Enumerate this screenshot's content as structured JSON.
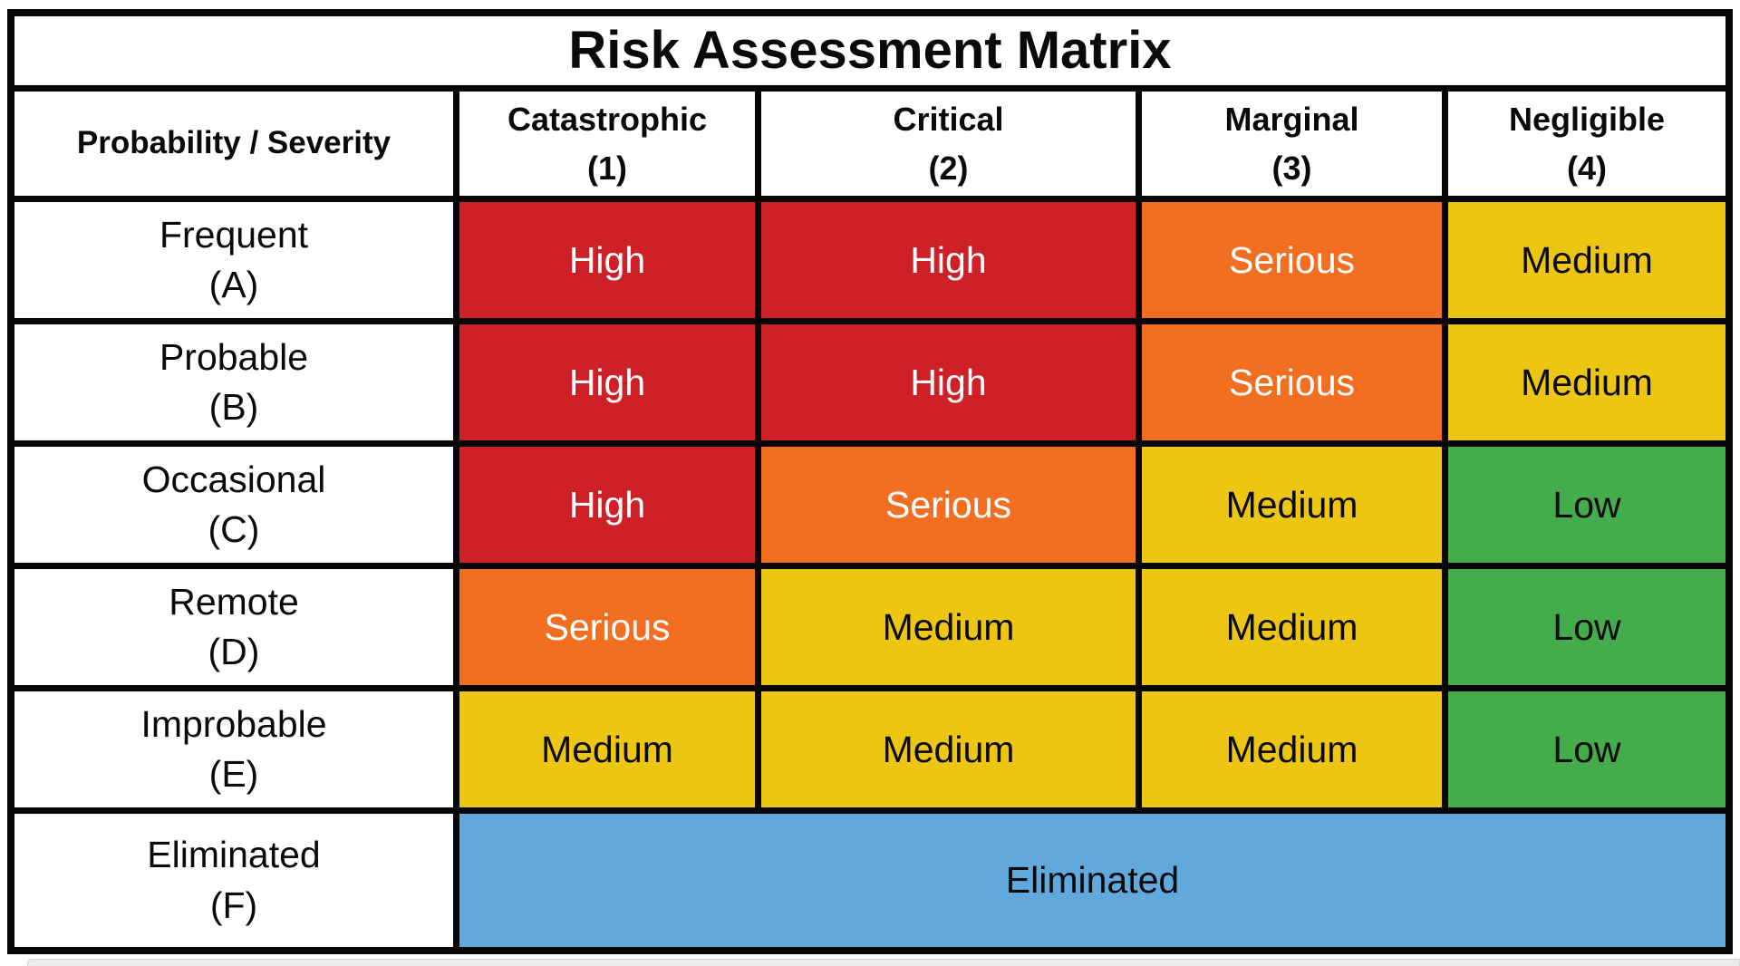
{
  "title": "Risk Assessment Matrix",
  "header": {
    "corner": "Probability / Severity",
    "columns": [
      {
        "name": "Catastrophic",
        "num": "(1)"
      },
      {
        "name": "Critical",
        "num": "(2)"
      },
      {
        "name": "Marginal",
        "num": "(3)"
      },
      {
        "name": "Negligible",
        "num": "(4)"
      }
    ]
  },
  "rows": [
    {
      "label": "Frequent",
      "code": "(A)",
      "cells": [
        {
          "text": "High",
          "level": "high"
        },
        {
          "text": "High",
          "level": "high"
        },
        {
          "text": "Serious",
          "level": "serious"
        },
        {
          "text": "Medium",
          "level": "medium"
        }
      ]
    },
    {
      "label": "Probable",
      "code": "(B)",
      "cells": [
        {
          "text": "High",
          "level": "high"
        },
        {
          "text": "High",
          "level": "high"
        },
        {
          "text": "Serious",
          "level": "serious"
        },
        {
          "text": "Medium",
          "level": "medium"
        }
      ]
    },
    {
      "label": "Occasional",
      "code": "(C)",
      "cells": [
        {
          "text": "High",
          "level": "high"
        },
        {
          "text": "Serious",
          "level": "serious"
        },
        {
          "text": "Medium",
          "level": "medium"
        },
        {
          "text": "Low",
          "level": "low"
        }
      ]
    },
    {
      "label": "Remote",
      "code": "(D)",
      "cells": [
        {
          "text": "Serious",
          "level": "serious"
        },
        {
          "text": "Medium",
          "level": "medium"
        },
        {
          "text": "Medium",
          "level": "medium"
        },
        {
          "text": "Low",
          "level": "low"
        }
      ]
    },
    {
      "label": "Improbable",
      "code": "(E)",
      "cells": [
        {
          "text": "Medium",
          "level": "medium"
        },
        {
          "text": "Medium",
          "level": "medium"
        },
        {
          "text": "Medium",
          "level": "medium"
        },
        {
          "text": "Low",
          "level": "low"
        }
      ]
    },
    {
      "label": "Eliminated",
      "code": "(F)",
      "cells": [
        {
          "text": "Eliminated",
          "level": "eliminated",
          "colspan": 4
        }
      ]
    }
  ],
  "colors": {
    "high": "#CE2127",
    "serious": "#F26E21",
    "medium": "#EDC613",
    "low": "#45AC4C",
    "eliminated": "#61A9DD",
    "grid_line": "#060606",
    "cell_background": "#FFFFFF"
  },
  "text_colors": {
    "high": "#FFFFFF",
    "serious": "#FFFFFF",
    "medium": "#0A0A0A",
    "low": "#0A0A0A",
    "eliminated": "#0A0A0A"
  },
  "chart_data": {
    "type": "heatmap",
    "title": "Risk Assessment Matrix",
    "columns": [
      "Catastrophic (1)",
      "Critical (2)",
      "Marginal (3)",
      "Negligible (4)"
    ],
    "rows": [
      "Frequent (A)",
      "Probable (B)",
      "Occasional (C)",
      "Remote (D)",
      "Improbable (E)",
      "Eliminated (F)"
    ],
    "values": [
      [
        "High",
        "High",
        "Serious",
        "Medium"
      ],
      [
        "High",
        "High",
        "Serious",
        "Medium"
      ],
      [
        "High",
        "Serious",
        "Medium",
        "Low"
      ],
      [
        "Serious",
        "Medium",
        "Medium",
        "Low"
      ],
      [
        "Medium",
        "Medium",
        "Medium",
        "Low"
      ],
      [
        "Eliminated",
        "Eliminated",
        "Eliminated",
        "Eliminated"
      ]
    ],
    "legend": {
      "High": "#CE2127",
      "Serious": "#F26E21",
      "Medium": "#EDC613",
      "Low": "#45AC4C",
      "Eliminated": "#61A9DD"
    },
    "layout": "title row spans all columns; Eliminated value spans the 4 severity columns in the last row"
  }
}
